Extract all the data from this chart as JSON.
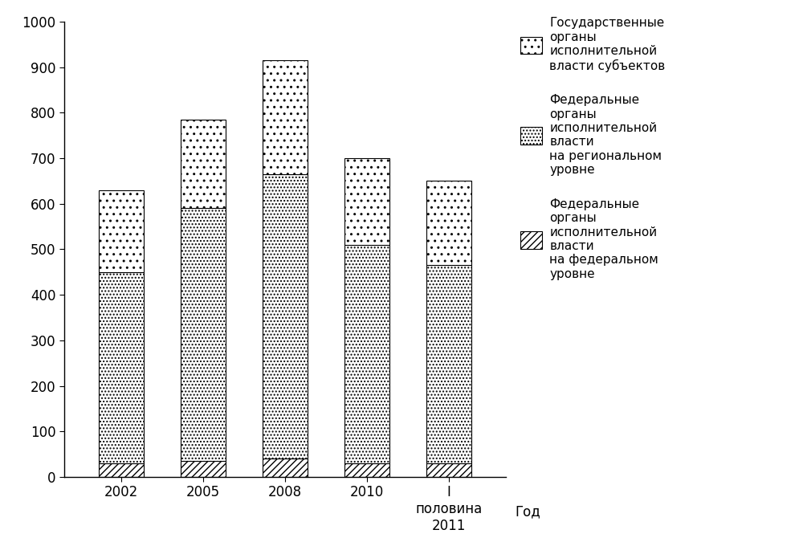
{
  "categories": [
    "2002",
    "2005",
    "2008",
    "2010",
    "I\nполовина\n2011"
  ],
  "federal_level": [
    30,
    35,
    40,
    30,
    30
  ],
  "regional_level": [
    420,
    555,
    625,
    480,
    435
  ],
  "subjects_level": [
    180,
    195,
    250,
    190,
    185
  ],
  "ylim": [
    0,
    1000
  ],
  "yticks": [
    0,
    100,
    200,
    300,
    400,
    500,
    600,
    700,
    800,
    900,
    1000
  ],
  "xlabel": "Год",
  "legend1": "Государственные\nорганы\nисполнительной\nвласти субъектов",
  "legend2": "Федеральные\nорганы\nисполнительной\nвласти\nна региональном\nуровне",
  "legend3": "Федеральные\nорганы\nисполнительной\nвласти\nна федеральном\nуровне",
  "bar_width": 0.55,
  "background_color": "#ffffff",
  "font_size": 12
}
